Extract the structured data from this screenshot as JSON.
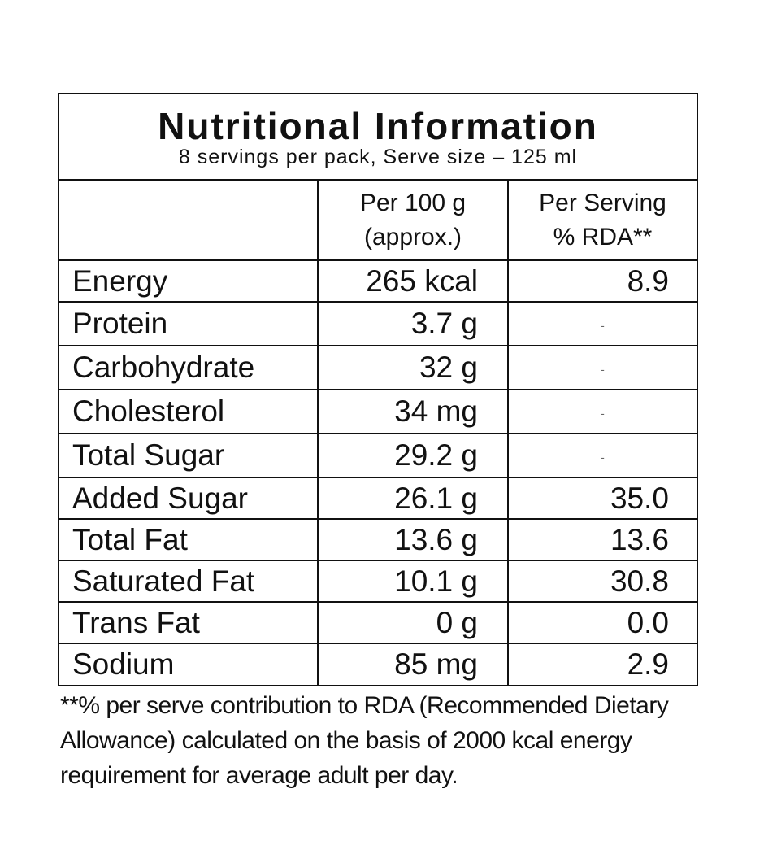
{
  "label": {
    "title": "Nutritional Information",
    "subtitle": "8 servings per pack, Serve size – 125 ml",
    "headers": {
      "nutrient": "",
      "per100_line1": "Per 100 g",
      "per100_line2": "(approx.)",
      "serving_line1": "Per Serving",
      "serving_line2": "% RDA**"
    },
    "rows": [
      {
        "nutrient": "Energy",
        "per100": "265 kcal",
        "rda": "8.9"
      },
      {
        "nutrient": "Protein",
        "per100": "3.7 g",
        "rda": "-"
      },
      {
        "nutrient": "Carbohydrate",
        "per100": "32 g",
        "rda": "-"
      },
      {
        "nutrient": "Cholesterol",
        "per100": "34 mg",
        "rda": "-"
      },
      {
        "nutrient": "Total Sugar",
        "per100": "29.2 g",
        "rda": "-"
      },
      {
        "nutrient": "Added Sugar",
        "per100": "26.1 g",
        "rda": "35.0"
      },
      {
        "nutrient": "Total Fat",
        "per100": "13.6 g",
        "rda": "13.6"
      },
      {
        "nutrient": "Saturated Fat",
        "per100": "10.1 g",
        "rda": "30.8"
      },
      {
        "nutrient": "Trans Fat",
        "per100": "0 g",
        "rda": "0.0"
      },
      {
        "nutrient": "Sodium",
        "per100": "85 mg",
        "rda": "2.9"
      }
    ],
    "footnote": "**% per serve contribution to RDA (Recommended Dietary Allowance) calculated on the basis of 2000 kcal energy requirement for average adult per day."
  }
}
